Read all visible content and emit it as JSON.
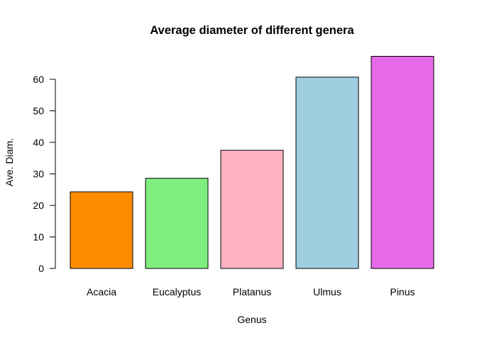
{
  "chart_data": {
    "type": "bar",
    "title": "Average diameter of different genera",
    "xlabel": "Genus",
    "ylabel": "Ave. Diam.",
    "categories": [
      "Acacia",
      "Eucalyptus",
      "Platanus",
      "Ulmus",
      "Pinus"
    ],
    "values": [
      24.3,
      28.6,
      37.5,
      60.7,
      67.3
    ],
    "colors": [
      "#ff8c00",
      "#80ee7e",
      "#ffb3c3",
      "#9ecee0",
      "#e66ae8"
    ],
    "yticks": [
      0,
      10,
      20,
      30,
      40,
      50,
      60
    ],
    "ylim": [
      0,
      68
    ],
    "grid": false,
    "legend": "none"
  }
}
